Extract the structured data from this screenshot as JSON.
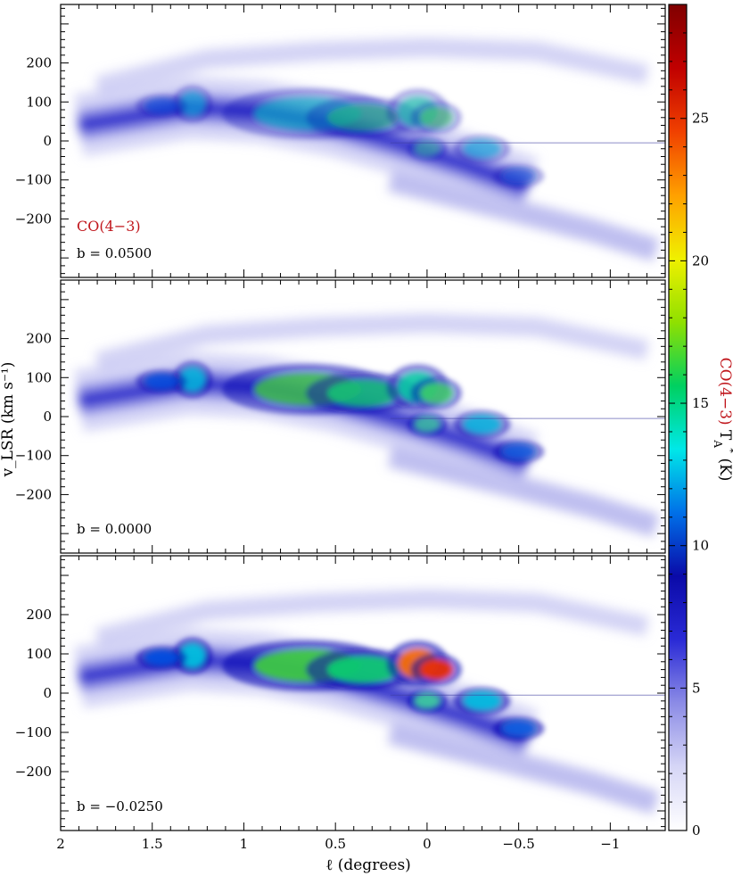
{
  "chart_data": {
    "type": "heatmap",
    "description_kind": "position-velocity diagrams (3 stacked panels sharing axes)",
    "xlabel": "ℓ (degrees)",
    "ylabel": "v_LSR (km s⁻¹)",
    "xlim": [
      2,
      -1.3
    ],
    "ylim": [
      -350,
      350
    ],
    "x_ticks": [
      "2",
      "1.5",
      "1",
      "0.5",
      "0",
      "−0.5",
      "−1"
    ],
    "x_tick_values": [
      2,
      1.5,
      1,
      0.5,
      0,
      -0.5,
      -1
    ],
    "y_ticks": [
      "−200",
      "−100",
      "0",
      "100",
      "200"
    ],
    "y_tick_values": [
      -200,
      -100,
      0,
      100,
      200
    ],
    "line_label": "CO(4−3)",
    "panels": [
      {
        "b_label": "b = 0.0500",
        "b": 0.05,
        "show_line_label": true
      },
      {
        "b_label": "b = 0.0000",
        "b": 0.0,
        "show_line_label": false
      },
      {
        "b_label": "b = −0.0250",
        "b": -0.025,
        "show_line_label": false
      }
    ],
    "colorbar": {
      "label_prefix": "CO(4−3)",
      "label_suffix": " T",
      "label_sub": "A",
      "label_star": "*",
      "label_unit": " (K)",
      "min": 0,
      "max": 29,
      "ticks": [
        "0",
        "5",
        "10",
        "15",
        "20",
        "25"
      ],
      "tick_values": [
        0,
        5,
        10,
        15,
        20,
        25
      ],
      "colormap": [
        "#ffffff",
        "#d6d6f6",
        "#8c8ce6",
        "#2a2ad6",
        "#0a0aa8",
        "#0070e8",
        "#00e8e8",
        "#00d060",
        "#90e000",
        "#f0f000",
        "#ffa000",
        "#f04000",
        "#c00000",
        "#800000"
      ]
    },
    "emission_features": [
      {
        "name": "main-ridge",
        "path": [
          [
            1.9,
            40
          ],
          [
            1.5,
            70
          ],
          [
            1.3,
            85
          ],
          [
            0.9,
            75
          ],
          [
            0.5,
            40
          ],
          [
            0.2,
            0
          ],
          [
            -0.2,
            -60
          ],
          [
            -0.55,
            -120
          ]
        ]
      },
      {
        "name": "upper-arc",
        "path": [
          [
            1.8,
            140
          ],
          [
            1.2,
            210
          ],
          [
            0.6,
            230
          ],
          [
            0,
            240
          ],
          [
            -0.6,
            230
          ],
          [
            -1.2,
            170
          ]
        ]
      },
      {
        "name": "lower-arc",
        "path": [
          [
            0.2,
            -100
          ],
          [
            -0.4,
            -170
          ],
          [
            -0.9,
            -230
          ],
          [
            -1.25,
            -280
          ]
        ]
      }
    ],
    "grid": false,
    "legend": "none"
  }
}
